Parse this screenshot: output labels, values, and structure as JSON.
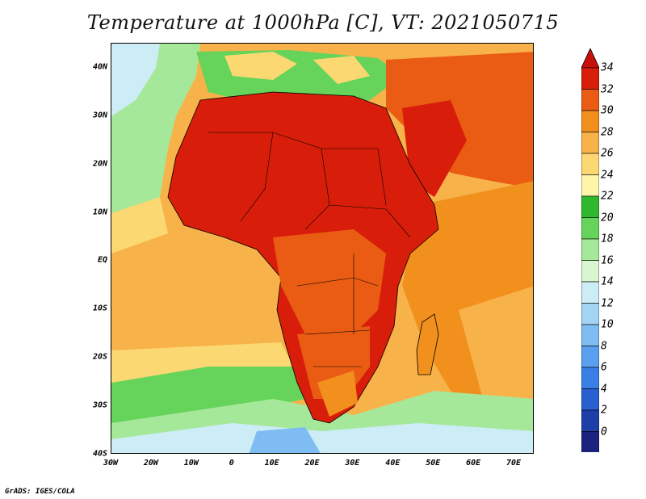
{
  "title": "Temperature at 1000hPa [C], VT: 2021050715",
  "credit": "GrADS: IGES/COLA",
  "lat_labels": [
    {
      "text": "40N",
      "value": 40
    },
    {
      "text": "30N",
      "value": 30
    },
    {
      "text": "20N",
      "value": 20
    },
    {
      "text": "10N",
      "value": 10
    },
    {
      "text": "EQ",
      "value": 0
    },
    {
      "text": "10S",
      "value": -10
    },
    {
      "text": "20S",
      "value": -20
    },
    {
      "text": "30S",
      "value": -30
    },
    {
      "text": "40S",
      "value": -40
    }
  ],
  "lon_labels": [
    {
      "text": "30W",
      "value": -30
    },
    {
      "text": "20W",
      "value": -20
    },
    {
      "text": "10W",
      "value": -10
    },
    {
      "text": "0",
      "value": 0
    },
    {
      "text": "10E",
      "value": 10
    },
    {
      "text": "20E",
      "value": 20
    },
    {
      "text": "30E",
      "value": 30
    },
    {
      "text": "40E",
      "value": 40
    },
    {
      "text": "50E",
      "value": 50
    },
    {
      "text": "60E",
      "value": 60
    },
    {
      "text": "70E",
      "value": 70
    }
  ],
  "extent": {
    "lon_min": -30,
    "lon_max": 75,
    "lat_min": -40,
    "lat_max": 45
  },
  "colorbar": {
    "labels": [
      "34",
      "32",
      "30",
      "28",
      "26",
      "24",
      "22",
      "20",
      "18",
      "16",
      "14",
      "12",
      "10",
      "8",
      "6",
      "4",
      "2",
      "0"
    ],
    "levels": [
      0,
      2,
      4,
      6,
      8,
      10,
      12,
      14,
      16,
      18,
      20,
      22,
      24,
      26,
      28,
      30,
      32,
      34
    ],
    "colors": [
      "#1a237e",
      "#1e3fa8",
      "#2a5fd0",
      "#3a7fe6",
      "#5aa0ee",
      "#7ebcf2",
      "#a4d4f4",
      "#ccecf6",
      "#d8f6d0",
      "#a6e89a",
      "#66d35a",
      "#2eb82e",
      "#fff4a8",
      "#fcd873",
      "#f8b24a",
      "#f2901e",
      "#ea5c14",
      "#d81e0a"
    ],
    "under_color": "#e8e8ff",
    "over_color": "#c8100a"
  }
}
